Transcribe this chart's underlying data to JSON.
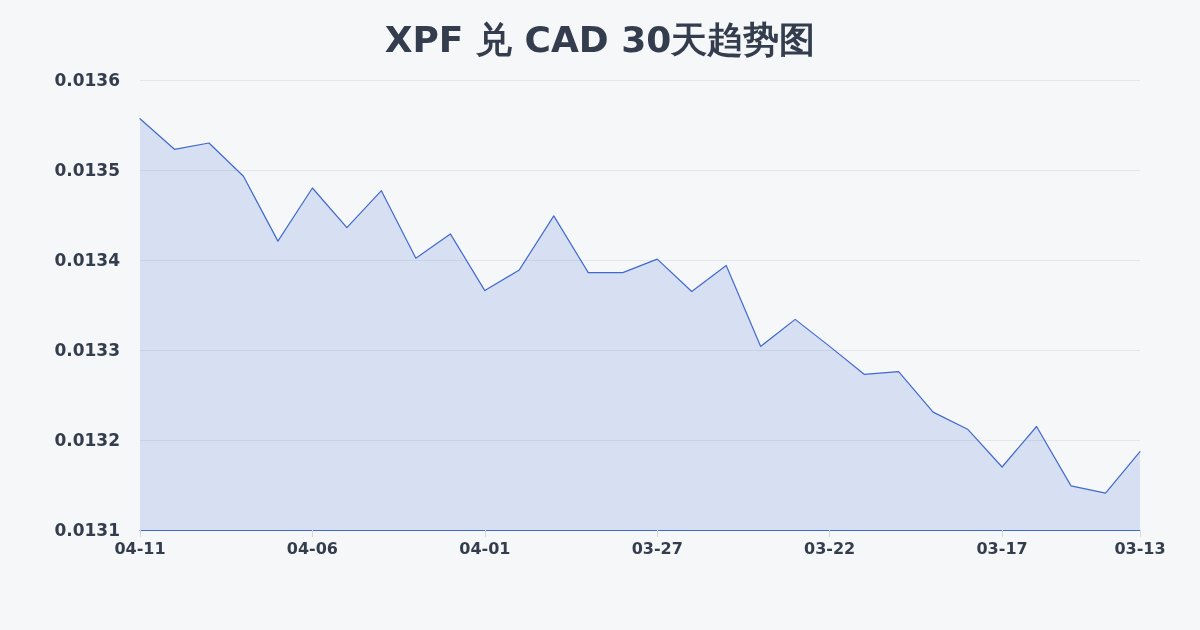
{
  "chart_data": {
    "type": "area",
    "title": "XPF 兑 CAD 30天趋势图",
    "categories": [
      "04-11",
      null,
      null,
      null,
      null,
      "04-06",
      null,
      null,
      null,
      null,
      "04-01",
      null,
      null,
      null,
      null,
      "03-27",
      null,
      null,
      null,
      null,
      "03-22",
      null,
      null,
      null,
      null,
      "03-17",
      null,
      null,
      null,
      "03-13"
    ],
    "values": [
      0.013557,
      0.013523,
      0.01353,
      0.013493,
      0.013421,
      0.01348,
      0.013436,
      0.013477,
      0.013402,
      0.013429,
      0.013366,
      0.013389,
      0.013449,
      0.013386,
      0.013386,
      0.013401,
      0.013365,
      0.013394,
      0.013304,
      0.013334,
      0.013304,
      0.013273,
      0.013276,
      0.013231,
      0.013212,
      0.01317,
      0.013215,
      0.013149,
      0.013141,
      0.013187
    ],
    "color": "#4169cf",
    "ylim": [
      0.0131,
      0.0136
    ],
    "yticks": [
      0.0131,
      0.0132,
      0.0133,
      0.0134,
      0.0135,
      0.0136
    ],
    "grid": "y",
    "marker": "none"
  }
}
